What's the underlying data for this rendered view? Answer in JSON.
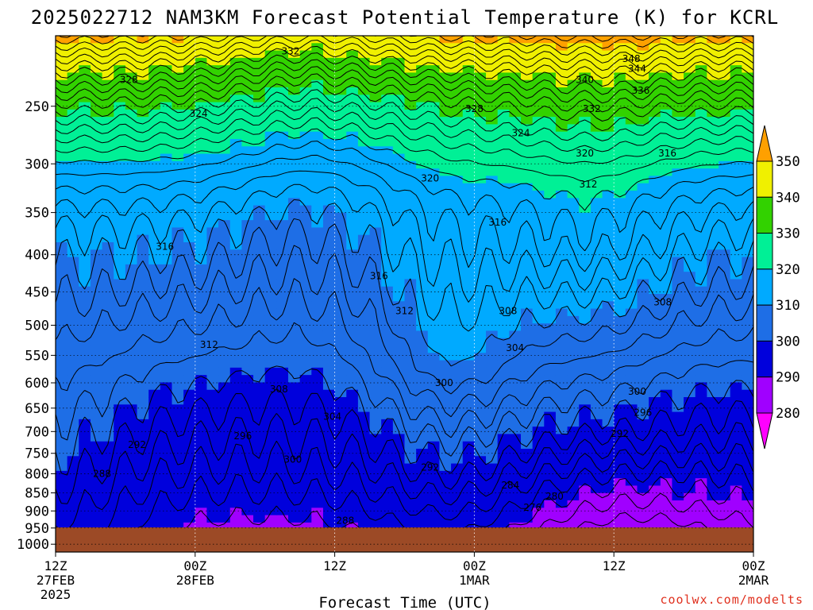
{
  "chart_data": {
    "type": "heatmap",
    "title": "2025022712 NAM3KM Forecast Potential Temperature (K) for KCRL",
    "xlabel": "Forecast Time (UTC)",
    "ylabel": "",
    "credit": "coolwx.com/modelts",
    "x_ticks": [
      {
        "lines": [
          "12Z",
          "27FEB",
          "2025"
        ],
        "hour": 0
      },
      {
        "lines": [
          "00Z",
          "28FEB"
        ],
        "hour": 12
      },
      {
        "lines": [
          "12Z"
        ],
        "hour": 24
      },
      {
        "lines": [
          "00Z",
          "1MAR"
        ],
        "hour": 36
      },
      {
        "lines": [
          "12Z"
        ],
        "hour": 48
      },
      {
        "lines": [
          "00Z",
          "2MAR"
        ],
        "hour": 60
      }
    ],
    "xlim": [
      0,
      60
    ],
    "y_ticks": [
      250,
      300,
      350,
      400,
      450,
      500,
      550,
      600,
      650,
      700,
      750,
      800,
      850,
      900,
      950,
      1000
    ],
    "ylim": [
      200,
      1025
    ],
    "y_scale": "log",
    "grid": true,
    "colorbar": {
      "ticks": [
        280,
        290,
        300,
        310,
        320,
        330,
        340,
        350
      ],
      "levels": [
        {
          "lo": 270,
          "hi": 280,
          "color": "#ff00ff"
        },
        {
          "lo": 280,
          "hi": 290,
          "color": "#a000ff"
        },
        {
          "lo": 290,
          "hi": 300,
          "color": "#0000dc"
        },
        {
          "lo": 300,
          "hi": 310,
          "color": "#1e6ee6"
        },
        {
          "lo": 310,
          "hi": 320,
          "color": "#00aaff"
        },
        {
          "lo": 320,
          "hi": 330,
          "color": "#00f096"
        },
        {
          "lo": 330,
          "hi": 340,
          "color": "#32d200"
        },
        {
          "lo": 340,
          "hi": 350,
          "color": "#f0f000"
        },
        {
          "lo": 350,
          "hi": 360,
          "color": "#ffa000"
        }
      ],
      "ground_color": "#9c4a26"
    },
    "contour_labels": [
      {
        "text": "332",
        "hour": 20.2,
        "p": 210
      },
      {
        "text": "348",
        "hour": 49.5,
        "p": 215
      },
      {
        "text": "344",
        "hour": 50.0,
        "p": 222
      },
      {
        "text": "328",
        "hour": 6.3,
        "p": 230
      },
      {
        "text": "340",
        "hour": 45.5,
        "p": 230
      },
      {
        "text": "336",
        "hour": 50.3,
        "p": 238
      },
      {
        "text": "324",
        "hour": 12.3,
        "p": 256
      },
      {
        "text": "328",
        "hour": 36.0,
        "p": 252
      },
      {
        "text": "332",
        "hour": 46.1,
        "p": 252
      },
      {
        "text": "324",
        "hour": 40.0,
        "p": 272
      },
      {
        "text": "320",
        "hour": 45.5,
        "p": 290
      },
      {
        "text": "316",
        "hour": 52.6,
        "p": 290
      },
      {
        "text": "320",
        "hour": 32.2,
        "p": 314
      },
      {
        "text": "312",
        "hour": 45.8,
        "p": 320
      },
      {
        "text": "316",
        "hour": 38.0,
        "p": 361
      },
      {
        "text": "316",
        "hour": 9.4,
        "p": 390
      },
      {
        "text": "316",
        "hour": 27.8,
        "p": 428
      },
      {
        "text": "312",
        "hour": 30.0,
        "p": 478
      },
      {
        "text": "308",
        "hour": 38.9,
        "p": 478
      },
      {
        "text": "308",
        "hour": 52.2,
        "p": 465
      },
      {
        "text": "312",
        "hour": 13.2,
        "p": 532
      },
      {
        "text": "304",
        "hour": 39.5,
        "p": 537
      },
      {
        "text": "308",
        "hour": 19.2,
        "p": 612
      },
      {
        "text": "300",
        "hour": 33.4,
        "p": 600
      },
      {
        "text": "300",
        "hour": 50.0,
        "p": 617
      },
      {
        "text": "304",
        "hour": 23.8,
        "p": 668
      },
      {
        "text": "296",
        "hour": 50.5,
        "p": 659
      },
      {
        "text": "296",
        "hour": 16.1,
        "p": 710
      },
      {
        "text": "292",
        "hour": 48.5,
        "p": 705
      },
      {
        "text": "292",
        "hour": 7.0,
        "p": 730
      },
      {
        "text": "300",
        "hour": 20.4,
        "p": 765
      },
      {
        "text": "292",
        "hour": 32.2,
        "p": 784
      },
      {
        "text": "288",
        "hour": 4.0,
        "p": 800
      },
      {
        "text": "284",
        "hour": 39.1,
        "p": 830
      },
      {
        "text": "280",
        "hour": 42.9,
        "p": 860
      },
      {
        "text": "276",
        "hour": 41.0,
        "p": 890
      },
      {
        "text": "288",
        "hour": 24.9,
        "p": 928
      }
    ]
  }
}
